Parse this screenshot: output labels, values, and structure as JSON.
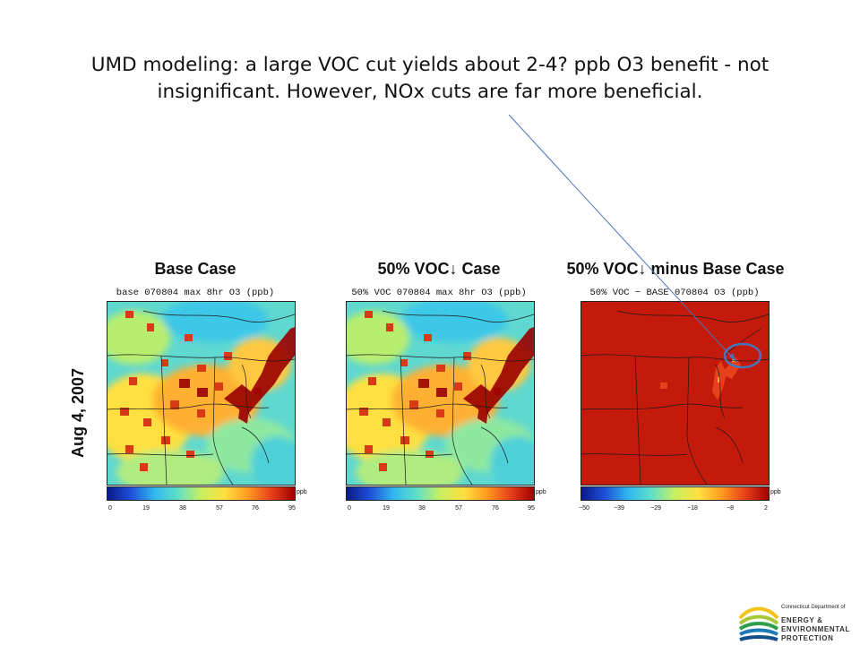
{
  "slide": {
    "title_line1": "UMD modeling: a large VOC cut yields about 2-4? ppb O3 benefit - not",
    "title_line2": "insignificant.  However, NOx cuts are far more beneficial."
  },
  "row_label": "Aug 4, 2007",
  "panels": [
    {
      "title": "Base Case",
      "subtitle": "base 070804 max 8hr O3 (ppb)",
      "colorbar": {
        "unit": "ppb",
        "ticks": [
          "0",
          "19",
          "38",
          "57",
          "76",
          "95"
        ]
      }
    },
    {
      "title": "50% VOC↓ Case",
      "subtitle": "50% VOC 070804 max 8hr O3 (ppb)",
      "colorbar": {
        "unit": "ppb",
        "ticks": [
          "0",
          "19",
          "38",
          "57",
          "76",
          "95"
        ]
      }
    },
    {
      "title": "50% VOC↓ minus Base Case",
      "subtitle": "50% VOC − BASE 070804 O3 (ppb)",
      "colorbar": {
        "unit": "ppb",
        "ticks": [
          "−50",
          "−39",
          "−29",
          "−18",
          "−8",
          "2"
        ]
      }
    }
  ],
  "logo": {
    "line1": "Connecticut Department of",
    "line2": "ENERGY &",
    "line3": "ENVIRONMENTAL",
    "line4": "PROTECTION"
  },
  "colors": {
    "difference_fill": "#c41a0c",
    "annotation": "#4a74b8",
    "colormap": [
      "#0a1a8c",
      "#1f4fd8",
      "#2fb8f0",
      "#5fe0c8",
      "#c8f060",
      "#ffe040",
      "#ff9a1e",
      "#e8401a",
      "#a00000"
    ]
  }
}
